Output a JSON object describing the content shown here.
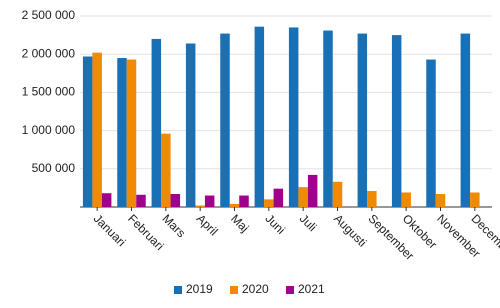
{
  "chart_data": {
    "type": "bar",
    "categories": [
      "Januari",
      "Februari",
      "Mars",
      "April",
      "Maj",
      "Juni",
      "Juli",
      "Augusti",
      "September",
      "Oktober",
      "November",
      "December"
    ],
    "series": [
      {
        "name": "2019",
        "color": "#1a70b5",
        "values": [
          1970000,
          1950000,
          2200000,
          2140000,
          2270000,
          2360000,
          2350000,
          2310000,
          2270000,
          2250000,
          1930000,
          2270000
        ]
      },
      {
        "name": "2020",
        "color": "#f08a00",
        "values": [
          2020000,
          1930000,
          960000,
          20000,
          40000,
          100000,
          260000,
          330000,
          210000,
          190000,
          170000,
          190000
        ]
      },
      {
        "name": "2021",
        "color": "#a1008c",
        "values": [
          180000,
          160000,
          170000,
          150000,
          150000,
          240000,
          420000,
          null,
          null,
          null,
          null,
          null
        ]
      }
    ],
    "ylim": [
      0,
      2500000
    ],
    "yticks": [
      {
        "value": 500000,
        "label": "500 000"
      },
      {
        "value": 1000000,
        "label": "1 000 000"
      },
      {
        "value": 1500000,
        "label": "1 500 000"
      },
      {
        "value": 2000000,
        "label": "2 000 000"
      },
      {
        "value": 2500000,
        "label": "2 500 000"
      }
    ],
    "grid": true,
    "legend": "bottom"
  }
}
